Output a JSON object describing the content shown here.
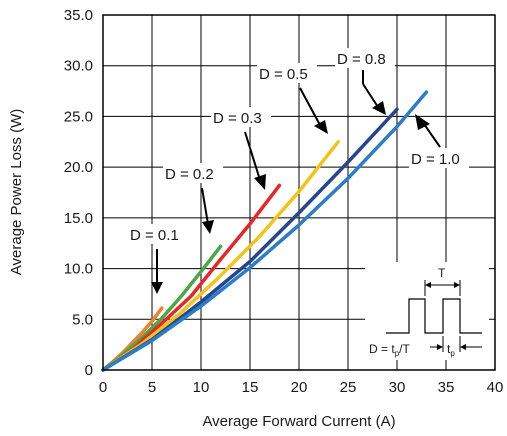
{
  "chart_data": {
    "type": "line",
    "title": "",
    "xlabel": "Average Forward Current (A)",
    "ylabel": "Average Power Loss (W)",
    "xlim": [
      0,
      40
    ],
    "ylim": [
      0,
      35
    ],
    "xticks": [
      "0",
      "5",
      "10",
      "15",
      "20",
      "25",
      "30",
      "35",
      "40"
    ],
    "yticks": [
      "0",
      "5.0",
      "10.0",
      "15.0",
      "20.0",
      "25.0",
      "30.0",
      "35.0"
    ],
    "grid": true,
    "series": [
      {
        "name": "D = 0.1",
        "color": "#f08030",
        "x": [
          0,
          1,
          2,
          3,
          4,
          5,
          6
        ],
        "y": [
          0,
          0.8,
          1.7,
          2.7,
          3.7,
          4.8,
          6.1
        ]
      },
      {
        "name": "D = 0.2",
        "color": "#4aa84a",
        "x": [
          0,
          2,
          4,
          6,
          8,
          10,
          12
        ],
        "y": [
          0,
          1.5,
          3.2,
          5.1,
          7.3,
          9.7,
          12.2
        ]
      },
      {
        "name": "D = 0.3",
        "color": "#e8262a",
        "x": [
          0,
          3,
          6,
          9,
          12,
          15,
          18
        ],
        "y": [
          0,
          2.0,
          4.6,
          7.3,
          10.9,
          14.4,
          18.2
        ]
      },
      {
        "name": "D = 0.5",
        "color": "#f2c418",
        "x": [
          0,
          4,
          8,
          12,
          16,
          20,
          24
        ],
        "y": [
          0,
          2.6,
          5.7,
          9.3,
          13.2,
          17.6,
          22.5
        ]
      },
      {
        "name": "D = 0.8",
        "color": "#27448f",
        "x": [
          0,
          5,
          10,
          15,
          20,
          25,
          30
        ],
        "y": [
          0,
          3.0,
          6.7,
          10.7,
          15.5,
          20.5,
          25.7
        ]
      },
      {
        "name": "D = 1.0",
        "color": "#2a7dc6",
        "x": [
          0,
          5,
          10,
          15,
          20,
          25,
          30,
          33
        ],
        "y": [
          0,
          2.9,
          6.3,
          10.1,
          14.3,
          18.9,
          24.0,
          27.4
        ]
      }
    ],
    "annotations": [
      {
        "label": "D = 0.1",
        "series": "D = 0.1"
      },
      {
        "label": "D = 0.2",
        "series": "D = 0.2"
      },
      {
        "label": "D = 0.3",
        "series": "D = 0.3"
      },
      {
        "label": "D = 0.5",
        "series": "D = 0.5"
      },
      {
        "label": "D = 0.8",
        "series": "D = 0.8"
      },
      {
        "label": "D = 1.0",
        "series": "D = 1.0"
      }
    ],
    "inset": {
      "period_label": "T",
      "formula_label": "D = t",
      "formula_sub": "p",
      "formula_tail": "/T",
      "tp_label": "t",
      "tp_sub": "p"
    }
  }
}
